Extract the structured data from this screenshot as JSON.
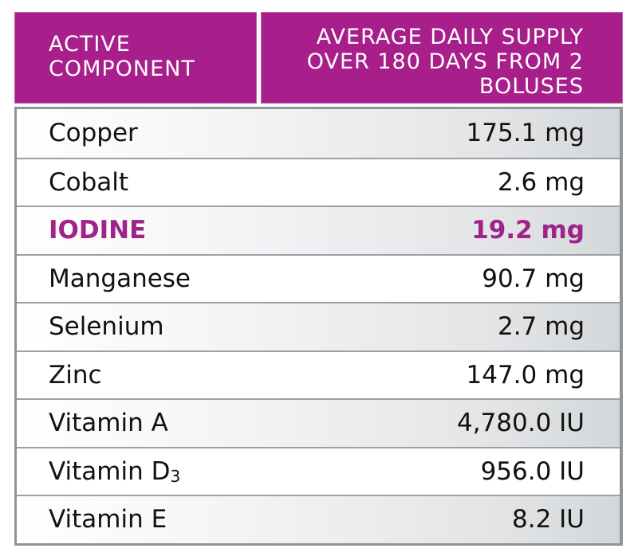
{
  "colors": {
    "header_bg": "#a81f8b",
    "highlight_text": "#a0238a",
    "border": "#8e9499",
    "text": "#111111"
  },
  "header": {
    "component_label_lines": [
      "ACTIVE",
      "COMPONENT"
    ],
    "supply_label_lines": [
      "AVERAGE DAILY SUPPLY",
      "OVER 180 DAYS FROM 2",
      "BOLUSES"
    ]
  },
  "rows": [
    {
      "name": "Copper",
      "value": "175.1 mg",
      "highlight": false
    },
    {
      "name": "Cobalt",
      "value": "2.6 mg",
      "highlight": false
    },
    {
      "name": "IODINE",
      "value": "19.2 mg",
      "highlight": true
    },
    {
      "name": "Manganese",
      "value": "90.7 mg",
      "highlight": false
    },
    {
      "name": "Selenium",
      "value": "2.7 mg",
      "highlight": false
    },
    {
      "name": "Zinc",
      "value": "147.0 mg",
      "highlight": false
    },
    {
      "name": "Vitamin A",
      "value": "4,780.0 IU",
      "highlight": false
    },
    {
      "name": "Vitamin D",
      "name_subscript": "3",
      "value": "956.0 IU",
      "highlight": false
    },
    {
      "name": "Vitamin E",
      "value": "8.2 IU",
      "highlight": false
    }
  ]
}
